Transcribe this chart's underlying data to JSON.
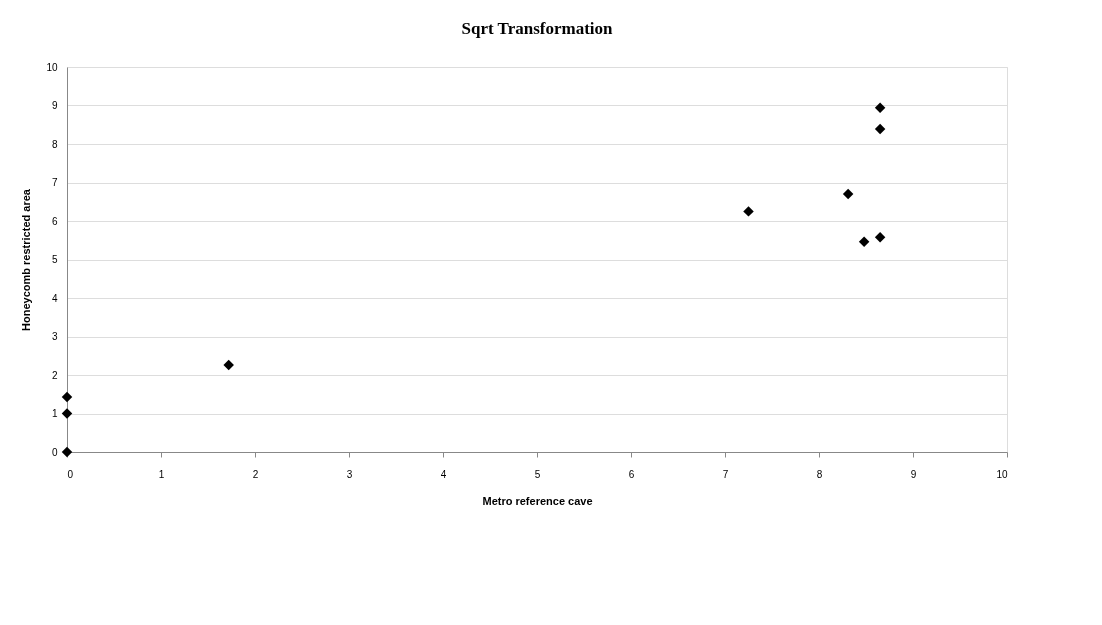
{
  "chart_data": {
    "type": "scatter",
    "title": "Sqrt Transformation",
    "xlabel": "Metro reference cave",
    "ylabel": "Honeycomb restricted area",
    "x": [
      0,
      0,
      0,
      1.72,
      7.25,
      8.31,
      8.48,
      8.65,
      8.65,
      8.65
    ],
    "series": [
      {
        "color": "#000000",
        "values": [
          0,
          1.0,
          1.43,
          2.26,
          6.25,
          6.7,
          5.46,
          5.58,
          8.39,
          8.94
        ]
      }
    ],
    "xlim": [
      0,
      10
    ],
    "xticks": [
      0,
      1,
      2,
      3,
      4,
      5,
      6,
      7,
      8,
      9,
      10
    ],
    "ylim": [
      0,
      10
    ],
    "yticks": [
      0,
      1,
      2,
      3,
      4,
      5,
      6,
      7,
      8,
      9,
      10
    ],
    "grid": "y",
    "marker": "diamond",
    "legend": false
  }
}
